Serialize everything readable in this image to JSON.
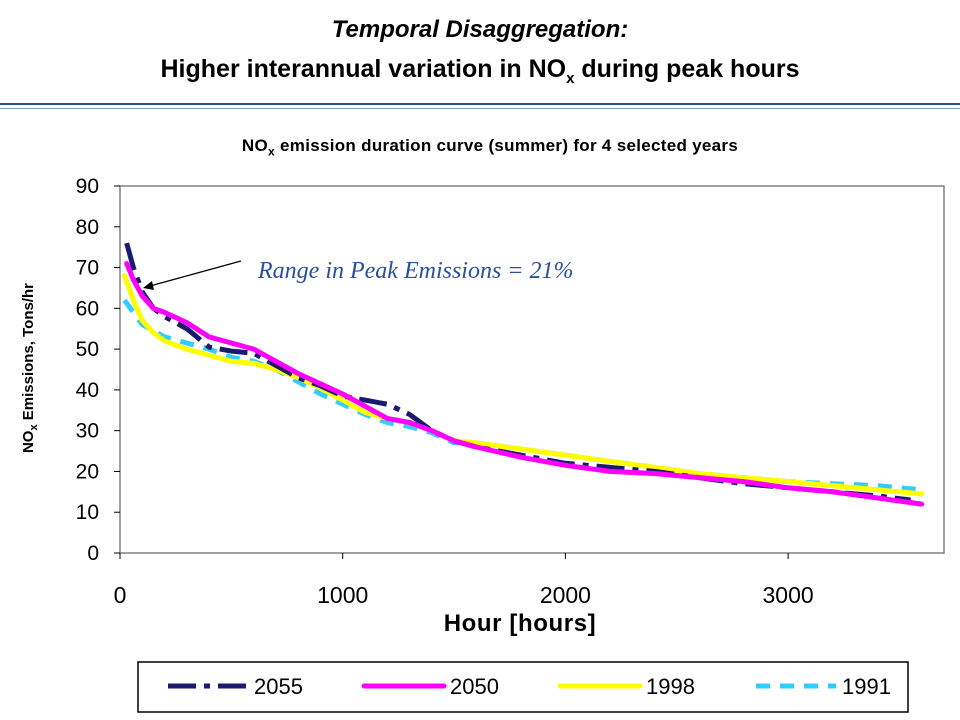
{
  "slide": {
    "title_line1": "Temporal Disaggregation:",
    "title_line2_pre": "Higher interannual variation in NO",
    "title_line2_sub": "x",
    "title_line2_post": " during peak hours"
  },
  "chart_data": {
    "type": "line",
    "title_pre": "NO",
    "title_sub": "x",
    "title_post": " emission duration curve (summer) for 4 selected years",
    "ylabel_pre": "NO",
    "ylabel_sub": "x",
    "ylabel_post": " Emissions, Tons/hr",
    "xlabel": "Hour [hours]",
    "xlim": [
      0,
      3700
    ],
    "ylim": [
      0,
      90
    ],
    "xticks": [
      0,
      1000,
      2000,
      3000
    ],
    "yticks": [
      0,
      10,
      20,
      30,
      40,
      50,
      60,
      70,
      80,
      90
    ],
    "grid": false,
    "legend_position": "bottom",
    "annotation": "Range in Peak Emissions = 21%",
    "colors": {
      "2055": "#1a1a6e",
      "2050": "#ff00ff",
      "1998": "#ffff00",
      "1991": "#33ccff"
    },
    "series": [
      {
        "name": "2055",
        "color": "#1a1a6e",
        "dash": "long-short",
        "x": [
          30,
          60,
          100,
          150,
          200,
          300,
          400,
          500,
          600,
          700,
          800,
          900,
          1000,
          1100,
          1200,
          1300,
          1400,
          1500,
          1600,
          1800,
          2000,
          2200,
          2400,
          2600,
          2800,
          3000,
          3200,
          3400,
          3550
        ],
        "y": [
          76,
          70,
          64,
          60,
          58,
          55,
          50.5,
          49.5,
          49,
          46,
          43,
          41,
          38.5,
          37.5,
          36.5,
          34,
          30,
          27.5,
          26,
          24,
          22,
          21,
          20,
          18.5,
          17,
          16,
          15,
          14,
          13
        ]
      },
      {
        "name": "2050",
        "color": "#ff00ff",
        "dash": "solid",
        "x": [
          30,
          60,
          100,
          150,
          200,
          300,
          400,
          500,
          600,
          700,
          800,
          900,
          1000,
          1100,
          1200,
          1300,
          1400,
          1500,
          1600,
          1800,
          2000,
          2200,
          2400,
          2600,
          2800,
          3000,
          3200,
          3400,
          3600
        ],
        "y": [
          71,
          67,
          63,
          60,
          59,
          56.5,
          53,
          51.5,
          50,
          47,
          44,
          41.5,
          39,
          36,
          33,
          32,
          30,
          27.5,
          26,
          23.5,
          21.5,
          20,
          19.5,
          18.5,
          17.5,
          16,
          15,
          13.5,
          12
        ]
      },
      {
        "name": "1998",
        "color": "#ffff00",
        "dash": "solid",
        "x": [
          20,
          60,
          100,
          150,
          200,
          300,
          400,
          500,
          600,
          700,
          800,
          900,
          1000,
          1100,
          1200,
          1300,
          1400,
          1500,
          1600,
          1800,
          2000,
          2200,
          2400,
          2600,
          2800,
          3000,
          3200,
          3400,
          3600
        ],
        "y": [
          68,
          62,
          57,
          54,
          52,
          50,
          48.5,
          47,
          46.5,
          45,
          43,
          40.5,
          37.5,
          34.5,
          33,
          32,
          30,
          27.5,
          27,
          25.5,
          24,
          22.5,
          21,
          19.5,
          18.5,
          17.5,
          16.5,
          15.5,
          14.5
        ]
      },
      {
        "name": "1991",
        "color": "#33ccff",
        "dash": "dashed",
        "x": [
          20,
          60,
          100,
          150,
          200,
          300,
          400,
          500,
          600,
          700,
          800,
          900,
          1000,
          1100,
          1200,
          1300,
          1400,
          1500,
          1600,
          1800,
          2000,
          2200,
          2400,
          2600,
          2800,
          3000,
          3200,
          3400,
          3600
        ],
        "y": [
          62,
          59,
          56,
          54.5,
          53,
          51.5,
          50,
          48,
          47,
          45,
          42,
          39,
          36.5,
          34,
          32,
          31,
          29.5,
          27,
          27,
          25.5,
          24,
          22.5,
          21,
          19.5,
          18.5,
          17.5,
          17,
          16.5,
          15.5
        ]
      }
    ]
  }
}
